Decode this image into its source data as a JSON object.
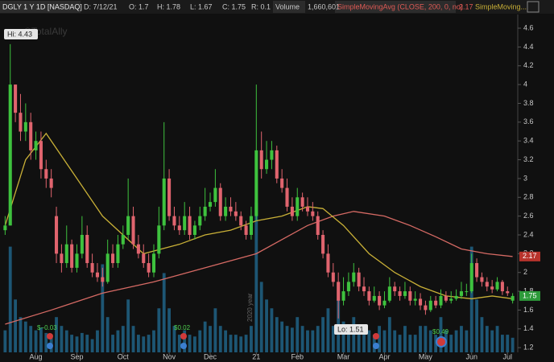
{
  "header": {
    "symbol": "DGLY 1 Y 1D [NASDAQ]",
    "date": "D: 7/12/21",
    "open": "O: 1.7",
    "high": "H: 1.78",
    "low": "L: 1.67",
    "close": "C: 1.75",
    "range": "R: 0.1",
    "volume_label": "Volume",
    "volume": "1,660,601",
    "study1": "SimpleMovingAvg (CLOSE, 200, 0, no)",
    "study1_value": "2.17",
    "study2": "SimpleMoving..."
  },
  "watermark": "©TotalAlly",
  "year_marker": "2020 year",
  "annotations": {
    "hi": "Hi: 4.43",
    "lo": "Lo: 1.51"
  },
  "events": [
    "$−0.03",
    "$0.02",
    "$0.49"
  ],
  "chart_data": {
    "type": "candlestick",
    "xlim": [
      0,
      101
    ],
    "xticks": [
      {
        "value": 7,
        "label": "Aug"
      },
      {
        "value": 15,
        "label": "Sep"
      },
      {
        "value": 24,
        "label": "Oct"
      },
      {
        "value": 33,
        "label": "Nov"
      },
      {
        "value": 41,
        "label": "Dec"
      },
      {
        "value": 50,
        "label": "21"
      },
      {
        "value": 58,
        "label": "Feb"
      },
      {
        "value": 67,
        "label": "Mar"
      },
      {
        "value": 75,
        "label": "Apr"
      },
      {
        "value": 83,
        "label": "May"
      },
      {
        "value": 92,
        "label": "Jun"
      },
      {
        "value": 99,
        "label": "Jul"
      }
    ],
    "ylim": [
      1.15,
      4.9
    ],
    "yticks": [
      1.2,
      1.4,
      1.6,
      1.8,
      2,
      2.2,
      2.4,
      2.6,
      2.8,
      3,
      3.2,
      3.4,
      3.6,
      3.8,
      4,
      4.2,
      4.4,
      4.6
    ],
    "volume_ylim": [
      0,
      40000000
    ],
    "up_color": "#3ec23e",
    "down_color": "#e0646e",
    "volume_color": "#1d5674",
    "open": [
      2.45,
      2.5,
      4.0,
      3.7,
      3.5,
      3.6,
      3.3,
      3.4,
      3.1,
      3.0,
      2.6,
      2.2,
      2.1,
      2.3,
      2.05,
      2.2,
      2.4,
      2.1,
      2.0,
      1.95,
      1.9,
      2.2,
      2.1,
      2.3,
      2.4,
      2.6,
      2.3,
      2.2,
      2.1,
      2.0,
      2.2,
      2.5,
      3.0,
      2.6,
      2.5,
      2.45,
      2.6,
      2.4,
      2.5,
      2.6,
      2.7,
      2.75,
      2.9,
      2.6,
      2.7,
      2.65,
      2.6,
      2.5,
      2.4,
      2.6,
      3.3,
      3.1,
      3.2,
      3.3,
      3.0,
      2.9,
      2.7,
      2.6,
      2.8,
      2.7,
      2.65,
      2.6,
      2.4,
      2.2,
      2.0,
      1.9,
      1.7,
      1.8,
      1.9,
      2.0,
      1.85,
      1.8,
      1.7,
      1.75,
      1.65,
      1.7,
      1.85,
      1.8,
      1.75,
      1.8,
      1.7,
      1.72,
      1.65,
      1.6,
      1.7,
      1.65,
      1.75,
      1.7,
      1.72,
      1.75,
      1.8,
      1.8,
      2.1,
      1.95,
      1.9,
      1.85,
      1.82,
      1.9,
      1.8,
      1.7
    ],
    "high": [
      2.6,
      4.43,
      4.0,
      3.9,
      3.8,
      3.7,
      3.5,
      3.5,
      3.2,
      3.1,
      2.7,
      2.3,
      2.5,
      2.35,
      2.3,
      2.6,
      2.5,
      2.2,
      2.1,
      2.05,
      2.35,
      2.3,
      2.4,
      2.5,
      3.0,
      2.7,
      2.4,
      2.3,
      2.2,
      2.3,
      2.7,
      3.6,
      3.1,
      2.7,
      2.6,
      2.75,
      2.7,
      2.55,
      2.7,
      2.9,
      2.85,
      3.1,
      2.95,
      2.8,
      2.8,
      2.75,
      2.65,
      2.55,
      2.7,
      4.0,
      3.5,
      3.4,
      3.4,
      3.35,
      3.1,
      3.0,
      2.8,
      2.9,
      2.85,
      2.8,
      2.75,
      2.65,
      2.45,
      2.3,
      2.1,
      2.0,
      1.95,
      2.0,
      2.1,
      2.05,
      1.95,
      1.85,
      1.85,
      1.8,
      1.8,
      1.95,
      1.9,
      1.85,
      1.9,
      1.85,
      1.8,
      1.78,
      1.7,
      1.75,
      1.75,
      1.82,
      1.8,
      1.8,
      1.82,
      1.9,
      1.88,
      2.2,
      2.15,
      2.0,
      1.95,
      1.92,
      1.95,
      1.92,
      1.85,
      1.78
    ],
    "low": [
      2.4,
      2.5,
      3.6,
      3.4,
      3.4,
      3.2,
      3.2,
      3.0,
      2.9,
      2.8,
      2.1,
      2.0,
      2.05,
      2.0,
      2.0,
      2.15,
      2.05,
      1.95,
      1.9,
      1.85,
      1.88,
      2.05,
      2.05,
      2.25,
      2.35,
      2.25,
      2.15,
      2.05,
      1.95,
      1.95,
      2.15,
      2.45,
      2.55,
      2.45,
      2.4,
      2.4,
      2.35,
      2.35,
      2.45,
      2.55,
      2.65,
      2.7,
      2.55,
      2.55,
      2.6,
      2.55,
      2.45,
      2.35,
      2.35,
      2.55,
      3.0,
      3.05,
      3.1,
      2.95,
      2.85,
      2.65,
      2.55,
      2.55,
      2.65,
      2.6,
      2.55,
      2.35,
      2.15,
      1.95,
      1.85,
      1.51,
      1.65,
      1.75,
      1.85,
      1.8,
      1.75,
      1.65,
      1.68,
      1.6,
      1.62,
      1.68,
      1.75,
      1.7,
      1.72,
      1.65,
      1.65,
      1.6,
      1.55,
      1.58,
      1.62,
      1.62,
      1.68,
      1.67,
      1.7,
      1.72,
      1.75,
      1.78,
      1.9,
      1.85,
      1.8,
      1.78,
      1.8,
      1.76,
      1.75,
      1.67
    ],
    "close": [
      2.5,
      4.0,
      3.7,
      3.5,
      3.6,
      3.3,
      3.4,
      3.1,
      3.0,
      2.9,
      2.2,
      2.1,
      2.3,
      2.05,
      2.2,
      2.4,
      2.1,
      2.0,
      1.95,
      1.9,
      2.2,
      2.1,
      2.3,
      2.4,
      2.6,
      2.3,
      2.2,
      2.1,
      2.0,
      2.2,
      2.5,
      3.0,
      2.6,
      2.5,
      2.45,
      2.6,
      2.4,
      2.5,
      2.6,
      2.7,
      2.75,
      2.9,
      2.6,
      2.7,
      2.65,
      2.6,
      2.5,
      2.4,
      2.6,
      3.3,
      3.1,
      3.2,
      3.3,
      3.0,
      2.9,
      2.7,
      2.6,
      2.8,
      2.7,
      2.65,
      2.6,
      2.4,
      2.2,
      2.0,
      1.9,
      1.7,
      1.8,
      1.9,
      2.0,
      1.85,
      1.8,
      1.7,
      1.75,
      1.65,
      1.7,
      1.85,
      1.8,
      1.75,
      1.8,
      1.7,
      1.72,
      1.65,
      1.6,
      1.7,
      1.65,
      1.75,
      1.7,
      1.72,
      1.75,
      1.8,
      1.8,
      2.1,
      1.95,
      1.9,
      1.85,
      1.82,
      1.9,
      1.8,
      1.78,
      1.75
    ],
    "last_close_label": "1.75",
    "volume": [
      2500000,
      12000000,
      6000000,
      4000000,
      3500000,
      3000000,
      2500000,
      2800000,
      2200000,
      2000000,
      4000000,
      3000000,
      2500000,
      2000000,
      1800000,
      2200000,
      2000000,
      1500000,
      2500000,
      10000000,
      4000000,
      2000000,
      2500000,
      3000000,
      6000000,
      3000000,
      2000000,
      1800000,
      2000000,
      2500000,
      5000000,
      9000000,
      5000000,
      3000000,
      2000000,
      2500000,
      2000000,
      1800000,
      2500000,
      3500000,
      3000000,
      5000000,
      3000000,
      2500000,
      2000000,
      2000000,
      1800000,
      2000000,
      3000000,
      17000000,
      8000000,
      6000000,
      5000000,
      4000000,
      3500000,
      3000000,
      2800000,
      4000000,
      3000000,
      2500000,
      2500000,
      3000000,
      4000000,
      5000000,
      3000000,
      6000000,
      3500000,
      3000000,
      4000000,
      2500000,
      2000000,
      2500000,
      2000000,
      3000000,
      2500000,
      4000000,
      2500000,
      2000000,
      3000000,
      2000000,
      2000000,
      3000000,
      3000000,
      2500000,
      2000000,
      4000000,
      2500000,
      2000000,
      2500000,
      3000000,
      2500000,
      12000000,
      6000000,
      4000000,
      3000000,
      2500000,
      3000000,
      2000000,
      2000000,
      1660601
    ],
    "series": [
      {
        "name": "SimpleMovingAvg (CLOSE, 200, 0, no)",
        "color": "#d66a64",
        "x": [
          1,
          10,
          20,
          30,
          40,
          50,
          55,
          60,
          65,
          69,
          75,
          80,
          85,
          90,
          95,
          100
        ],
        "values": [
          1.45,
          1.6,
          1.78,
          1.9,
          2.05,
          2.2,
          2.35,
          2.5,
          2.6,
          2.65,
          2.6,
          2.5,
          2.38,
          2.25,
          2.2,
          2.17
        ],
        "last_label": "2.17"
      },
      {
        "name": "SimpleMoving...",
        "color": "#c9b037",
        "x": [
          1,
          5,
          9,
          15,
          20,
          25,
          28,
          35,
          40,
          45,
          50,
          55,
          60,
          63,
          67,
          72,
          77,
          82,
          87,
          92,
          96,
          100
        ],
        "values": [
          2.5,
          3.2,
          3.48,
          3.0,
          2.6,
          2.35,
          2.2,
          2.3,
          2.4,
          2.45,
          2.55,
          2.6,
          2.7,
          2.68,
          2.5,
          2.2,
          2.0,
          1.85,
          1.75,
          1.72,
          1.75,
          1.72
        ]
      }
    ]
  }
}
